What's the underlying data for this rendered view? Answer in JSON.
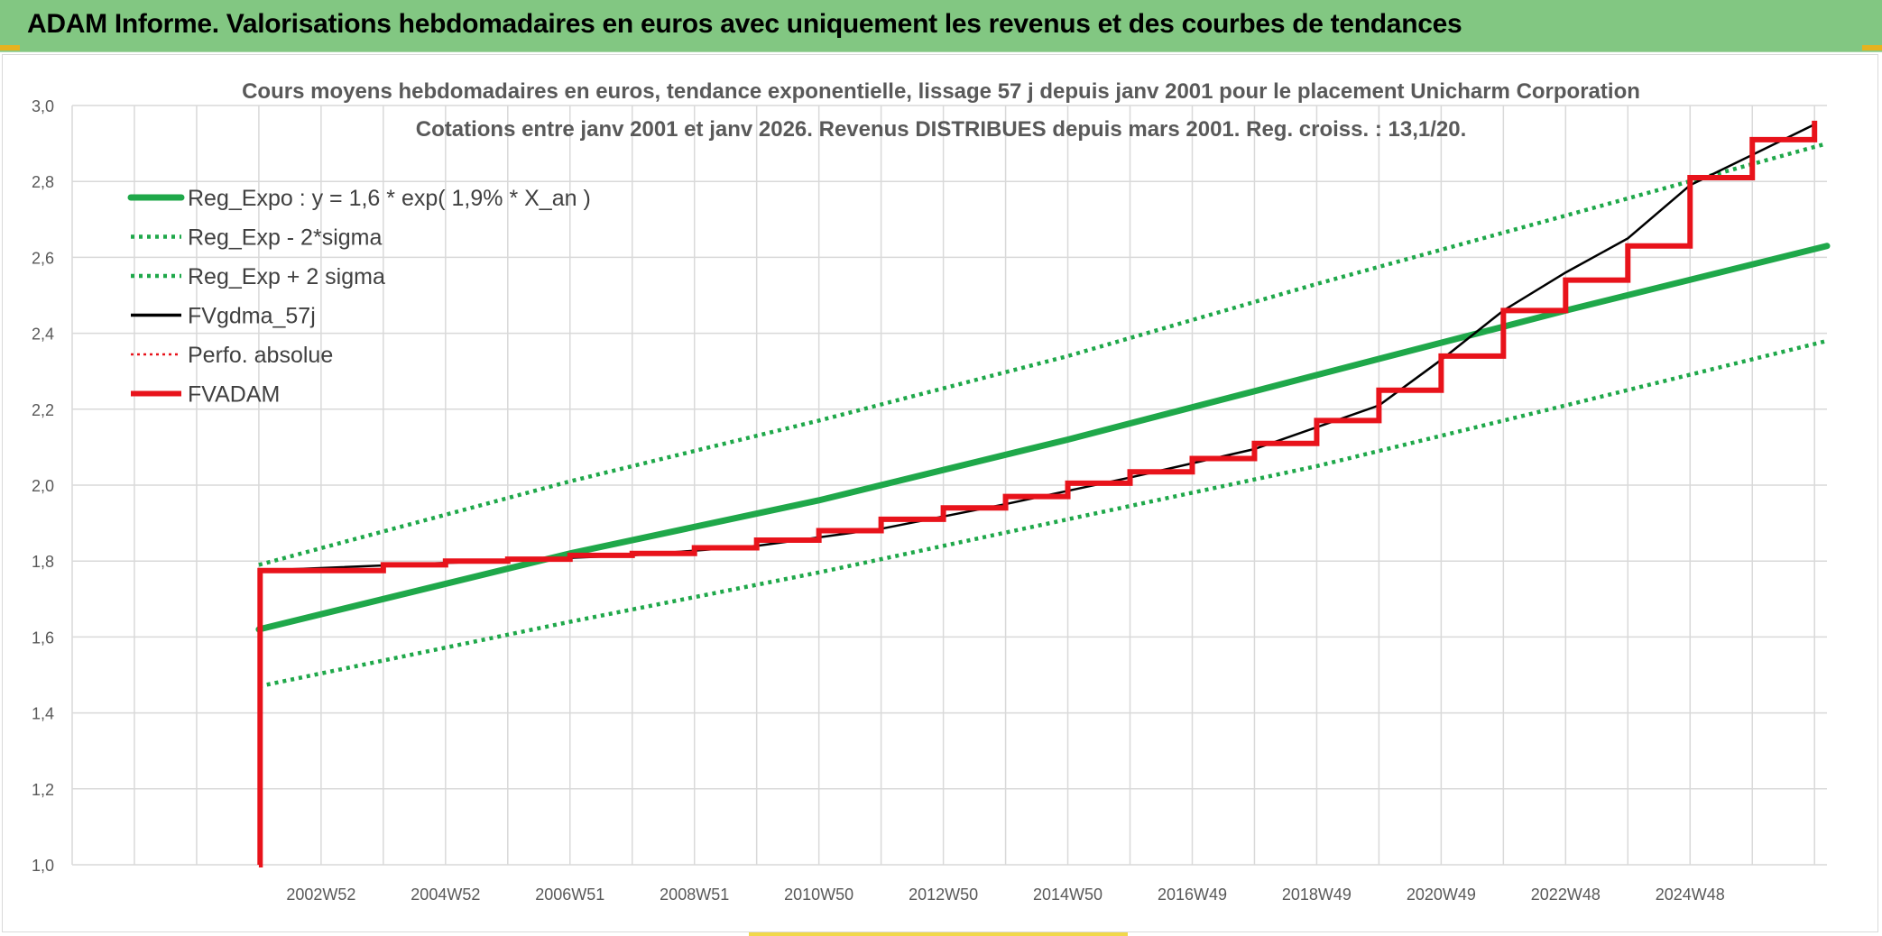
{
  "banner": {
    "title": "ADAM Informe. Valorisations hebdomadaires en euros avec uniquement les revenus et des courbes de tendances"
  },
  "colors": {
    "banner_bg": "#82c782",
    "green": "#1fa84a",
    "red": "#e8131b",
    "black": "#000000",
    "grid": "#d9d9d9",
    "text": "#595959"
  },
  "chart_data": {
    "type": "line",
    "title": [
      "Cours moyens hebdomadaires en euros, tendance exponentielle, lissage 57 j depuis janv 2001 pour le placement Unicharm Corporation",
      "Cotations entre janv 2001 et janv 2026. Revenus DISTRIBUES depuis mars 2001. Reg. croiss. : 13,1/20."
    ],
    "xlabel": "",
    "ylabel": "",
    "ylim": [
      1.0,
      3.0
    ],
    "xlim": [
      1998.0,
      2026.2
    ],
    "y_ticks": [
      "1,0",
      "1,2",
      "1,4",
      "1,6",
      "1,8",
      "2,0",
      "2,2",
      "2,4",
      "2,6",
      "2,8",
      "3,0"
    ],
    "x_tick_labels": [
      "2002W52",
      "2004W52",
      "2006W51",
      "2008W51",
      "2010W50",
      "2012W50",
      "2014W50",
      "2016W49",
      "2018W49",
      "2020W49",
      "2022W48",
      "2024W48"
    ],
    "x_tick_positions": [
      2002.0,
      2004.0,
      2006.0,
      2008.0,
      2010.0,
      2012.0,
      2014.0,
      2016.0,
      2018.0,
      2020.0,
      2022.0,
      2024.0
    ],
    "grid": true,
    "legend_position": "top-left",
    "series": [
      {
        "name": "Reg_Expo : y = 1,6 * exp( 1,9% *  X_an )",
        "style": "solid",
        "color": "#1fa84a",
        "x": [
          2001.0,
          2006.0,
          2010.0,
          2014.0,
          2018.0,
          2022.0,
          2026.2
        ],
        "y": [
          1.62,
          1.82,
          1.96,
          2.12,
          2.29,
          2.46,
          2.63
        ]
      },
      {
        "name": "Reg_Exp - 2*sigma",
        "style": "dotted",
        "color": "#1fa84a",
        "x": [
          2001.0,
          2006.0,
          2010.0,
          2014.0,
          2018.0,
          2022.0,
          2026.2
        ],
        "y": [
          1.47,
          1.64,
          1.77,
          1.91,
          2.05,
          2.21,
          2.38
        ]
      },
      {
        "name": "Reg_Exp + 2 sigma",
        "style": "dotted",
        "color": "#1fa84a",
        "x": [
          2001.0,
          2006.0,
          2010.0,
          2014.0,
          2018.0,
          2022.0,
          2026.2
        ],
        "y": [
          1.79,
          2.01,
          2.17,
          2.34,
          2.53,
          2.71,
          2.9
        ]
      },
      {
        "name": "FVgdma_57j",
        "style": "thin",
        "color": "#000000",
        "x": [
          2001.0,
          2001.02,
          2004.0,
          2007.0,
          2009.0,
          2011.0,
          2013.0,
          2015.0,
          2017.0,
          2019.0,
          2020.0,
          2021.0,
          2022.0,
          2023.0,
          2024.0,
          2025.0,
          2026.0
        ],
        "y": [
          1.0,
          1.775,
          1.795,
          1.815,
          1.84,
          1.885,
          1.95,
          2.02,
          2.095,
          2.21,
          2.33,
          2.46,
          2.56,
          2.65,
          2.79,
          2.87,
          2.95
        ]
      },
      {
        "name": "Perfo. absolue",
        "style": "dotted-thin",
        "color": "#e8131b",
        "x": [],
        "y": []
      },
      {
        "name": "FVADAM",
        "style": "step",
        "color": "#e8131b",
        "x": [
          2001.0,
          2001.02,
          2003.0,
          2004.0,
          2005.0,
          2006.0,
          2007.0,
          2008.0,
          2009.0,
          2010.0,
          2011.0,
          2012.0,
          2013.0,
          2014.0,
          2015.0,
          2016.0,
          2017.0,
          2018.0,
          2019.0,
          2020.0,
          2021.0,
          2022.0,
          2023.0,
          2024.0,
          2025.0,
          2026.0
        ],
        "y": [
          1.0,
          1.775,
          1.79,
          1.8,
          1.805,
          1.815,
          1.82,
          1.835,
          1.855,
          1.88,
          1.91,
          1.94,
          1.97,
          2.005,
          2.035,
          2.07,
          2.11,
          2.17,
          2.25,
          2.34,
          2.46,
          2.54,
          2.63,
          2.81,
          2.91,
          2.96
        ]
      }
    ]
  }
}
